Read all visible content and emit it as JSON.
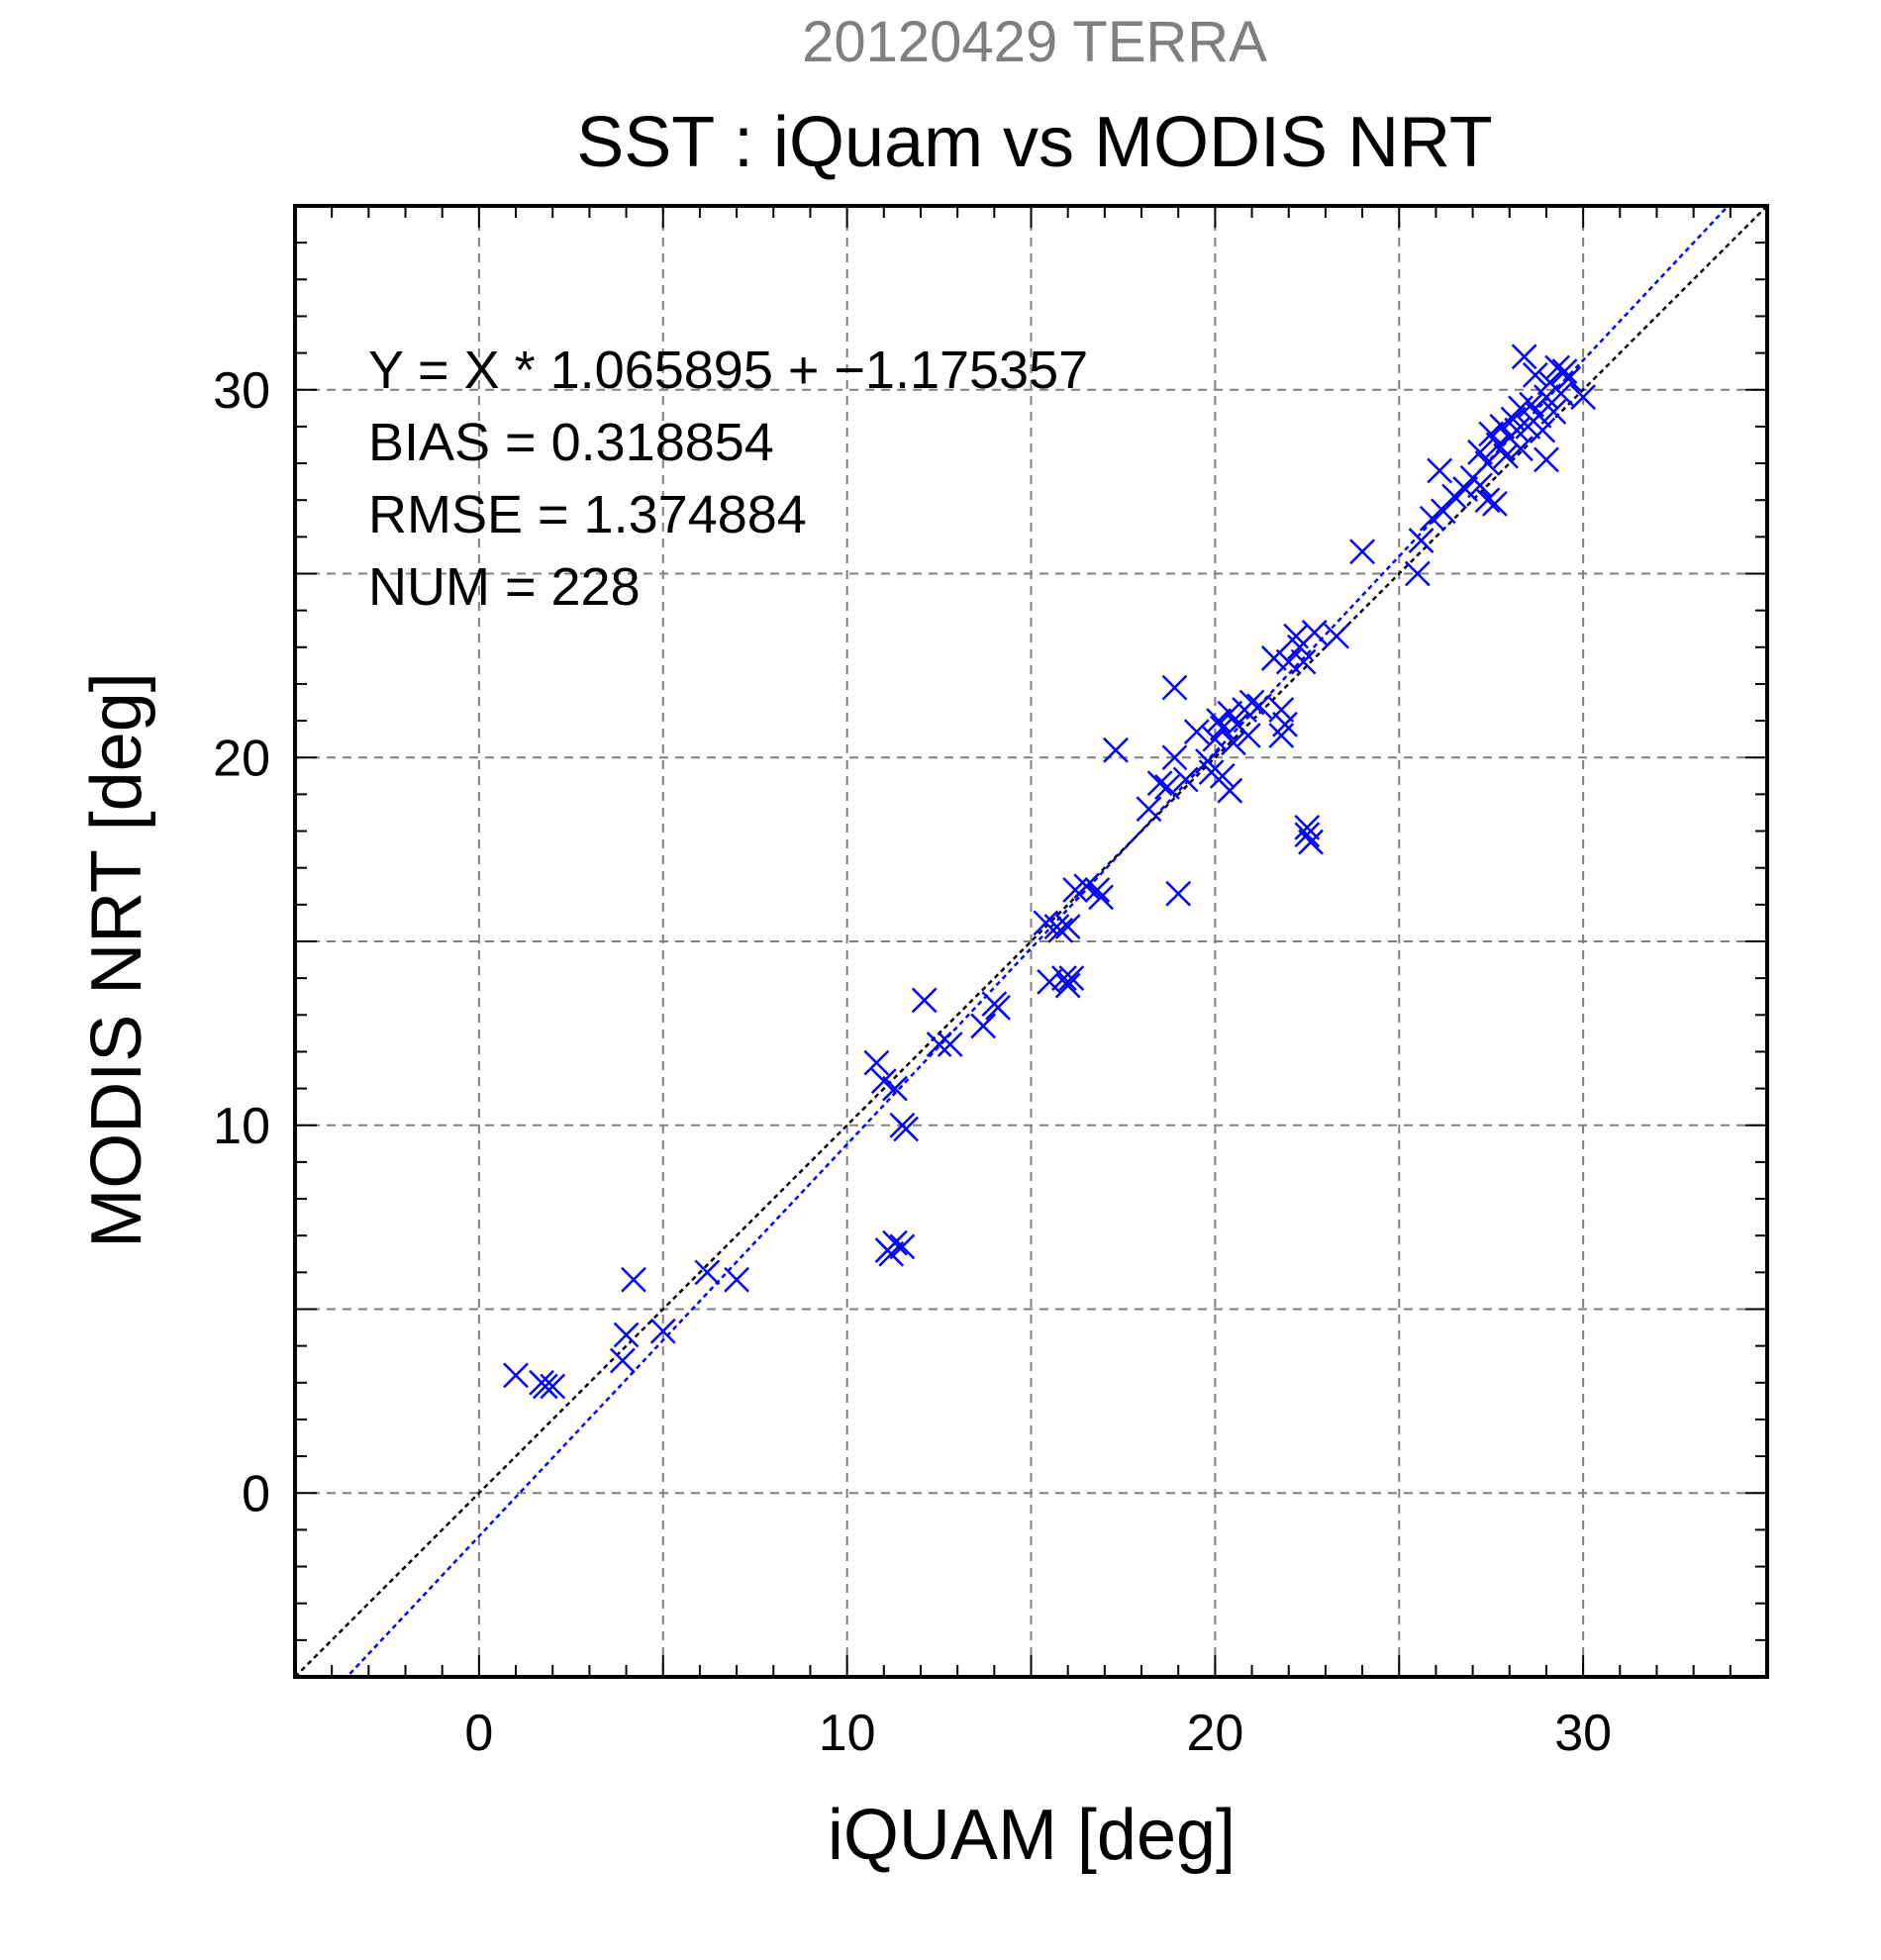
{
  "chart_data": {
    "type": "scatter",
    "header": "20120429 TERRA",
    "title": "SST : iQuam vs MODIS NRT",
    "xlabel": "iQUAM [deg]",
    "ylabel": "MODIS NRT [deg]",
    "xlim": [
      -5,
      35
    ],
    "ylim": [
      -5,
      35
    ],
    "x_ticks": [
      0,
      10,
      20,
      30
    ],
    "x_tick_labels": [
      "0",
      "10",
      "20",
      "30"
    ],
    "y_ticks": [
      0,
      10,
      20,
      30
    ],
    "y_tick_labels": [
      "0",
      "10",
      "20",
      "30"
    ],
    "grid": true,
    "stats": [
      "Y = X * 1.065895 + −1.175357",
      "BIAS = 0.318854",
      "RMSE = 1.374884",
      "NUM = 228"
    ],
    "fit_line": {
      "slope": 1.065895,
      "intercept": -1.175357,
      "color": "#0000ff"
    },
    "identity_line": {
      "slope": 1,
      "intercept": 0,
      "color": "#000000"
    },
    "marker": {
      "shape": "x",
      "color": "#0000ff"
    },
    "series": [
      {
        "values": [
          [
            1.0,
            3.2
          ],
          [
            1.7,
            3.0
          ],
          [
            1.8,
            2.9
          ],
          [
            2.0,
            2.9
          ],
          [
            3.9,
            3.6
          ],
          [
            4.0,
            4.3
          ],
          [
            4.2,
            5.8
          ],
          [
            5.0,
            4.4
          ],
          [
            6.2,
            6.0
          ],
          [
            7.0,
            5.8
          ],
          [
            10.8,
            11.7
          ],
          [
            11.0,
            11.2
          ],
          [
            11.1,
            6.6
          ],
          [
            11.2,
            6.5
          ],
          [
            11.3,
            6.8
          ],
          [
            11.3,
            11.0
          ],
          [
            11.5,
            6.7
          ],
          [
            11.5,
            10.0
          ],
          [
            11.6,
            9.9
          ],
          [
            12.1,
            13.4
          ],
          [
            12.5,
            12.2
          ],
          [
            12.8,
            12.2
          ],
          [
            13.7,
            12.7
          ],
          [
            14.0,
            13.3
          ],
          [
            14.1,
            13.2
          ],
          [
            15.4,
            15.5
          ],
          [
            15.5,
            13.9
          ],
          [
            15.7,
            15.4
          ],
          [
            15.8,
            15.3
          ],
          [
            15.9,
            14.0
          ],
          [
            16.0,
            15.4
          ],
          [
            16.0,
            13.8
          ],
          [
            16.1,
            14.0
          ],
          [
            16.2,
            16.4
          ],
          [
            16.5,
            16.5
          ],
          [
            16.8,
            16.4
          ],
          [
            16.9,
            16.2
          ],
          [
            17.3,
            20.2
          ],
          [
            18.2,
            18.6
          ],
          [
            18.5,
            19.3
          ],
          [
            18.7,
            19.2
          ],
          [
            18.9,
            20.0
          ],
          [
            18.9,
            21.9
          ],
          [
            19.0,
            16.3
          ],
          [
            19.2,
            19.4
          ],
          [
            19.5,
            20.7
          ],
          [
            19.8,
            19.9
          ],
          [
            19.9,
            19.6
          ],
          [
            20.0,
            20.5
          ],
          [
            20.1,
            21.0
          ],
          [
            20.2,
            20.8
          ],
          [
            20.2,
            19.5
          ],
          [
            20.4,
            21.2
          ],
          [
            20.4,
            19.1
          ],
          [
            20.5,
            20.4
          ],
          [
            20.6,
            20.9
          ],
          [
            20.8,
            21.3
          ],
          [
            20.9,
            20.6
          ],
          [
            21.0,
            21.5
          ],
          [
            21.2,
            21.4
          ],
          [
            21.6,
            22.7
          ],
          [
            21.8,
            21.3
          ],
          [
            21.8,
            20.6
          ],
          [
            21.9,
            20.9
          ],
          [
            22.0,
            22.6
          ],
          [
            22.2,
            23.3
          ],
          [
            22.3,
            23.0
          ],
          [
            22.4,
            22.6
          ],
          [
            22.5,
            17.9
          ],
          [
            22.5,
            18.1
          ],
          [
            22.6,
            17.7
          ],
          [
            22.7,
            23.4
          ],
          [
            23.3,
            23.3
          ],
          [
            24.0,
            25.6
          ],
          [
            25.5,
            25.0
          ],
          [
            25.6,
            25.9
          ],
          [
            25.9,
            26.5
          ],
          [
            26.1,
            27.8
          ],
          [
            26.2,
            26.7
          ],
          [
            26.5,
            27.1
          ],
          [
            26.8,
            27.3
          ],
          [
            27.0,
            27.6
          ],
          [
            27.2,
            27.4
          ],
          [
            27.2,
            28.3
          ],
          [
            27.4,
            28.0
          ],
          [
            27.4,
            27.0
          ],
          [
            27.5,
            28.8
          ],
          [
            27.6,
            26.9
          ],
          [
            27.7,
            28.5
          ],
          [
            27.8,
            29.0
          ],
          [
            27.9,
            28.2
          ],
          [
            28.0,
            28.7
          ],
          [
            28.1,
            29.2
          ],
          [
            28.2,
            28.9
          ],
          [
            28.3,
            29.5
          ],
          [
            28.3,
            28.4
          ],
          [
            28.4,
            30.9
          ],
          [
            28.5,
            29.0
          ],
          [
            28.6,
            29.6
          ],
          [
            28.7,
            30.4
          ],
          [
            28.8,
            29.3
          ],
          [
            28.9,
            28.9
          ],
          [
            29.0,
            29.8
          ],
          [
            29.0,
            28.1
          ],
          [
            29.1,
            30.2
          ],
          [
            29.2,
            29.4
          ],
          [
            29.3,
            30.6
          ],
          [
            29.4,
            29.9
          ],
          [
            29.5,
            30.5
          ],
          [
            29.6,
            30.3
          ],
          [
            30.0,
            29.8
          ]
        ]
      }
    ]
  }
}
